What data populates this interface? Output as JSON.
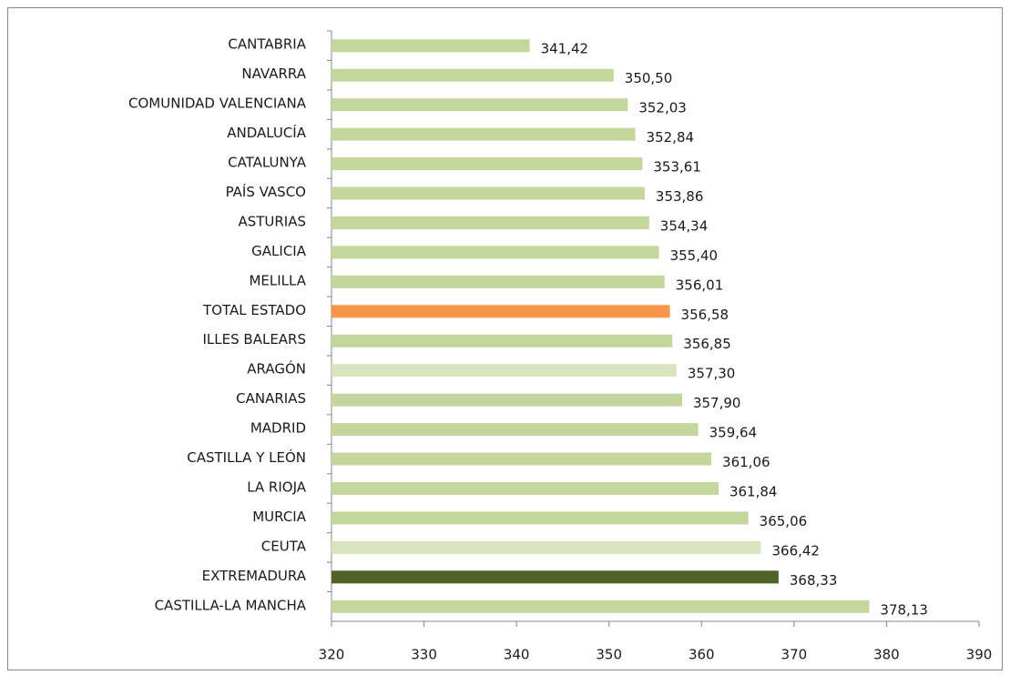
{
  "chart_data": {
    "type": "bar",
    "orientation": "horizontal",
    "categories": [
      "CANTABRIA",
      "NAVARRA",
      "COMUNIDAD VALENCIANA",
      "ANDALUCÍA",
      "CATALUNYA",
      "PAÍS VASCO",
      "ASTURIAS",
      "GALICIA",
      "MELILLA",
      "TOTAL ESTADO",
      "ILLES BALEARS",
      "ARAGÓN",
      "CANARIAS",
      "MADRID",
      "CASTILLA Y LEÓN",
      "LA RIOJA",
      "MURCIA",
      "CEUTA",
      "EXTREMADURA",
      "CASTILLA-LA  MANCHA"
    ],
    "values": [
      341.42,
      350.5,
      352.03,
      352.84,
      353.61,
      353.86,
      354.34,
      355.4,
      356.01,
      356.58,
      356.85,
      357.3,
      357.9,
      359.64,
      361.06,
      361.84,
      365.06,
      366.42,
      368.33,
      378.13
    ],
    "value_labels": [
      "341,42",
      "350,50",
      "352,03",
      "352,84",
      "353,61",
      "353,86",
      "354,34",
      "355,40",
      "356,01",
      "356,58",
      "356,85",
      "357,30",
      "357,90",
      "359,64",
      "361,06",
      "361,84",
      "365,06",
      "366,42",
      "368,33",
      "378,13"
    ],
    "colors": [
      "#c3d69b",
      "#c3d69b",
      "#c3d69b",
      "#c3d69b",
      "#c3d69b",
      "#c3d69b",
      "#c3d69b",
      "#c3d69b",
      "#c3d69b",
      "#f79646",
      "#c3d69b",
      "#d7e4bd",
      "#c3d69b",
      "#c3d69b",
      "#c3d69b",
      "#c3d69b",
      "#c3d69b",
      "#d7e4bd",
      "#4f6228",
      "#c3d69b"
    ],
    "xlim": [
      320,
      390
    ],
    "xticks": [
      320,
      330,
      340,
      350,
      360,
      370,
      380,
      390
    ],
    "grid": false
  }
}
